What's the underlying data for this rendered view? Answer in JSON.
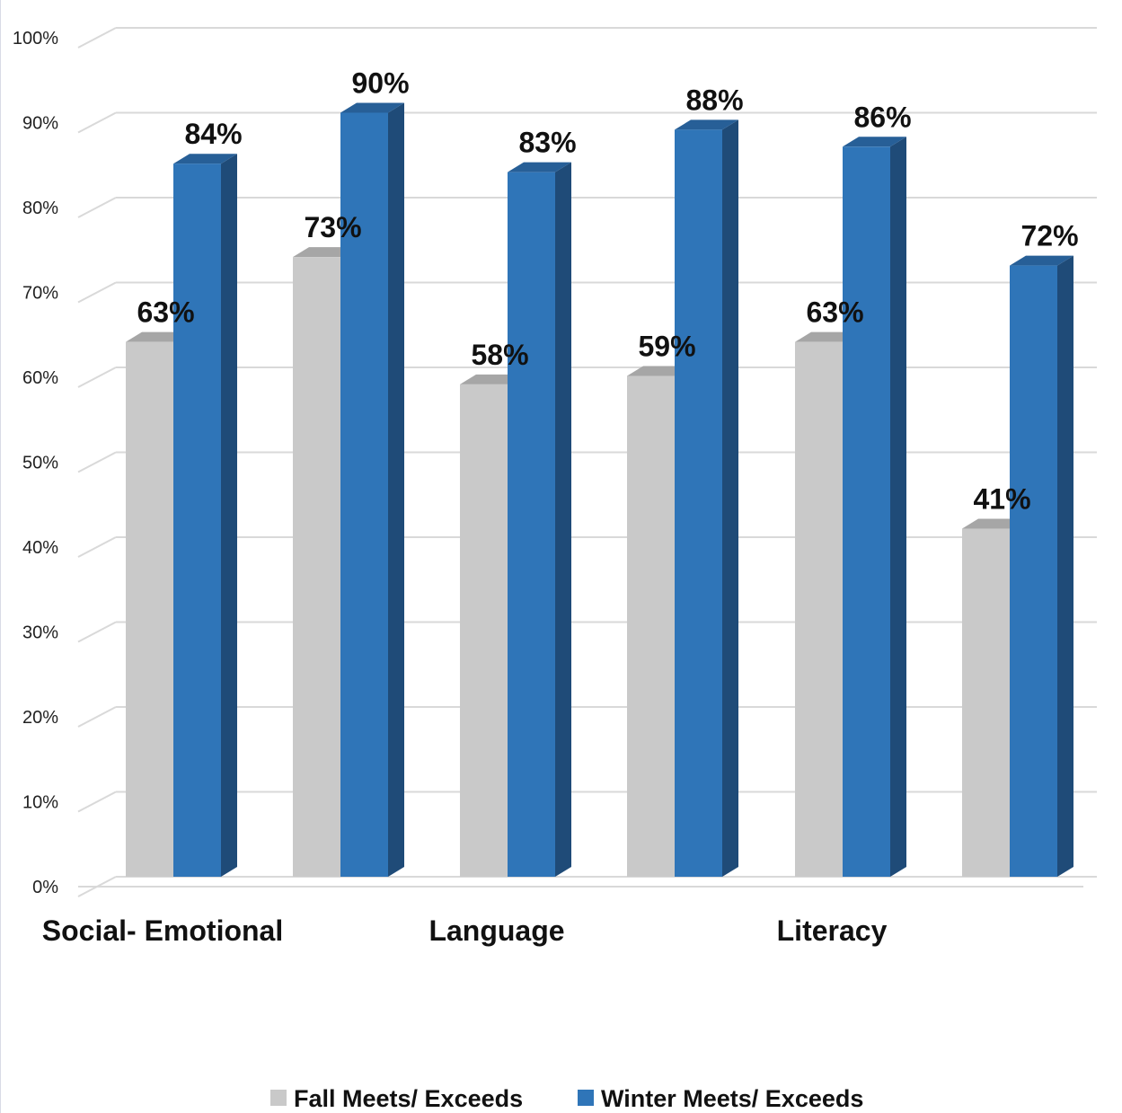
{
  "chart_data": {
    "type": "bar",
    "three_d": true,
    "categories": [
      "",
      "",
      "",
      "",
      "",
      ""
    ],
    "group_labels": [
      "Social- Emotional",
      "Language",
      "Literacy"
    ],
    "series": [
      {
        "name": "Fall Meets/ Exceeds",
        "values": [
          63,
          73,
          58,
          59,
          63,
          41
        ],
        "labels": [
          "63%",
          "73%",
          "58%",
          "59%",
          "63%",
          "41%"
        ],
        "color": "#c9c9c9",
        "top_color": "#a6a6a6"
      },
      {
        "name": "Winter Meets/ Exceeds",
        "values": [
          84,
          90,
          83,
          88,
          86,
          72
        ],
        "labels": [
          "84%",
          "90%",
          "83%",
          "88%",
          "86%",
          "72%"
        ],
        "color": "#2f75b8",
        "side_color": "#1f4b78",
        "top_color": "#275f97"
      }
    ],
    "y_ticks": [
      "0%",
      "10%",
      "20%",
      "30%",
      "40%",
      "50%",
      "60%",
      "70%",
      "80%",
      "90%",
      "100%"
    ],
    "ylim": [
      0,
      100
    ],
    "grid": true,
    "legend": "bottom-center"
  }
}
